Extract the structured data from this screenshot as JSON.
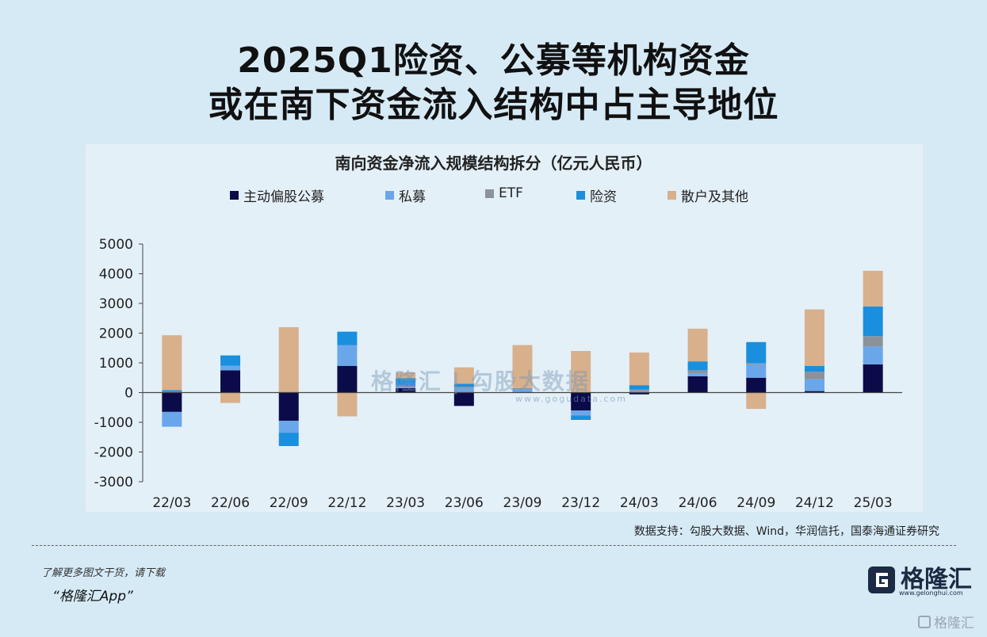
{
  "headline": {
    "line1": "2025Q1险资、公募等机构资金",
    "line2": "或在南下资金流入结构中占主导地位"
  },
  "chart_data": {
    "type": "bar",
    "stacked": true,
    "title": "南向资金净流入规模结构拆分（亿元人民币）",
    "categories": [
      "22/03",
      "22/06",
      "22/09",
      "22/12",
      "23/03",
      "23/06",
      "23/09",
      "23/12",
      "24/03",
      "24/06",
      "24/09",
      "24/12",
      "25/03"
    ],
    "ylim": [
      -3000,
      5000
    ],
    "yticks": [
      "5000",
      "4000",
      "3000",
      "2000",
      "1000",
      "0",
      "-1000",
      "-2000",
      "-3000"
    ],
    "legend_position": "top",
    "grid": false,
    "series": [
      {
        "name": "主动偏股公募",
        "color": "#0b0b4a",
        "values": [
          -650,
          750,
          -950,
          900,
          150,
          -450,
          20,
          -600,
          -60,
          550,
          500,
          50,
          950
        ]
      },
      {
        "name": "私募",
        "color": "#6aa6ea",
        "values": [
          -500,
          150,
          -400,
          700,
          50,
          150,
          100,
          -150,
          50,
          100,
          450,
          400,
          600
        ]
      },
      {
        "name": "ETF",
        "color": "#8c929a",
        "values": [
          30,
          0,
          0,
          0,
          30,
          50,
          30,
          -20,
          50,
          100,
          50,
          250,
          350
        ]
      },
      {
        "name": "险资",
        "color": "#1a8fde",
        "values": [
          50,
          350,
          -450,
          450,
          250,
          100,
          0,
          -150,
          150,
          300,
          700,
          200,
          1000
        ]
      },
      {
        "name": "散户及其他",
        "color": "#d8b08c",
        "values": [
          1850,
          -350,
          2200,
          -800,
          200,
          550,
          1450,
          1400,
          1100,
          1100,
          -550,
          1900,
          1200
        ]
      }
    ]
  },
  "watermark": {
    "text": "格隆汇 | 勾股大数据",
    "url": "www.gogudata.com"
  },
  "source": "数据支持：勾股大数据、Wind，华润信托，国泰海通证券研究",
  "footer": {
    "line1": "了解更多图文干货，请下载",
    "line2": "“格隆汇App”"
  },
  "logo": {
    "text": "格隆汇",
    "sub": "www.gelonghui.com"
  },
  "corner_logo": "格隆汇"
}
